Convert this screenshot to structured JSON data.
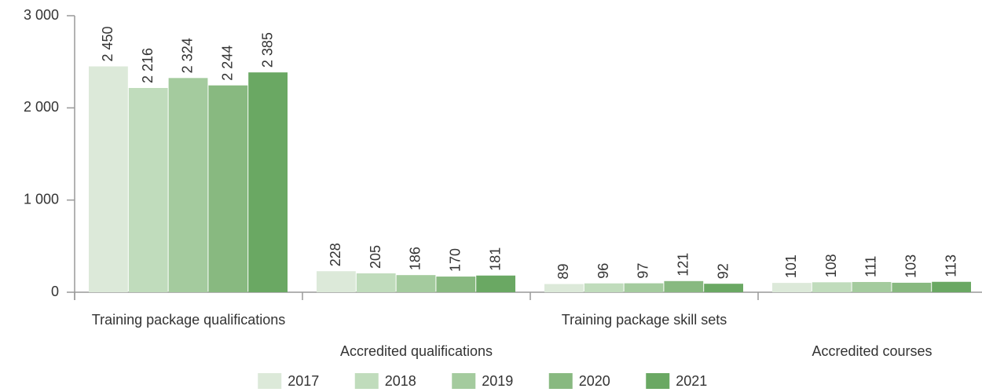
{
  "chart_data": {
    "type": "bar",
    "categories": [
      "Training package qualifications",
      "Accredited qualifications",
      "Training package skill sets",
      "Accredited courses"
    ],
    "series": [
      {
        "name": "2017",
        "color": "#dce9d9",
        "values": [
          2450,
          228,
          89,
          101
        ],
        "value_labels": [
          "2 450",
          "228",
          "89",
          "101"
        ]
      },
      {
        "name": "2018",
        "color": "#c0dcbc",
        "values": [
          2216,
          205,
          96,
          108
        ],
        "value_labels": [
          "2 216",
          "205",
          "96",
          "108"
        ]
      },
      {
        "name": "2019",
        "color": "#a4cb9e",
        "values": [
          2324,
          186,
          97,
          111
        ],
        "value_labels": [
          "2 324",
          "186",
          "97",
          "111"
        ]
      },
      {
        "name": "2020",
        "color": "#88b980",
        "values": [
          2244,
          170,
          121,
          103
        ],
        "value_labels": [
          "2 244",
          "170",
          "121",
          "103"
        ]
      },
      {
        "name": "2021",
        "color": "#6aa863",
        "values": [
          2385,
          181,
          92,
          113
        ],
        "value_labels": [
          "2 385",
          "181",
          "92",
          "113"
        ]
      }
    ],
    "ylim": [
      0,
      3000
    ],
    "yticks": [
      0,
      {
        "value": 1000,
        "label": "1 000"
      },
      {
        "value": 2000,
        "label": "2 000"
      },
      {
        "value": 3000,
        "label": "3 000"
      }
    ],
    "grid": false,
    "legend": "bottom"
  }
}
